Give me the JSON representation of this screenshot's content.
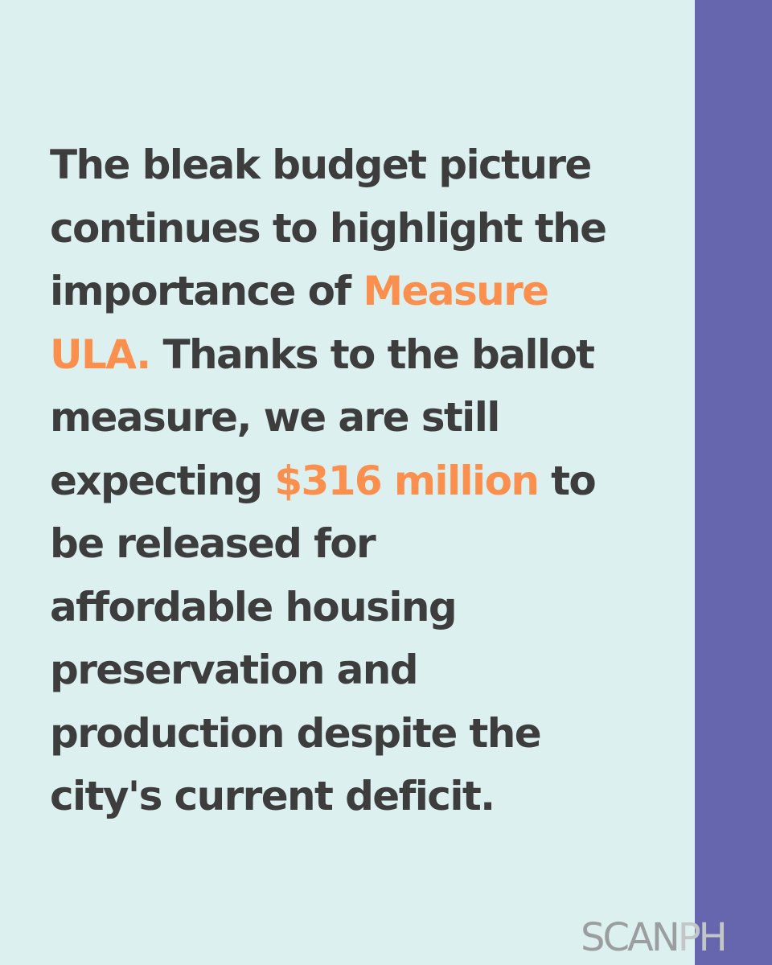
{
  "quote": {
    "l1": "The bleak budget picture",
    "l2": "continues to highlight the",
    "l3_pre": "importance of ",
    "l3_hl": "Measure",
    "l4_hl": "ULA.",
    "l4_post": " Thanks to the ballot",
    "l5": "measure, we are still",
    "l6_pre": "expecting ",
    "l6_hl": "$316 million",
    "l6_post": " to",
    "l7": "be released for",
    "l8": "affordable housing",
    "l9": "preservation and",
    "l10": "production despite the",
    "l11": "city's current deficit."
  },
  "logo": {
    "part1": "SCAN",
    "part2": "PH"
  },
  "colors": {
    "background": "#ddf0f0",
    "side_band": "#6566ad",
    "text": "#3d3d3d",
    "highlight": "#fb8f4e"
  }
}
